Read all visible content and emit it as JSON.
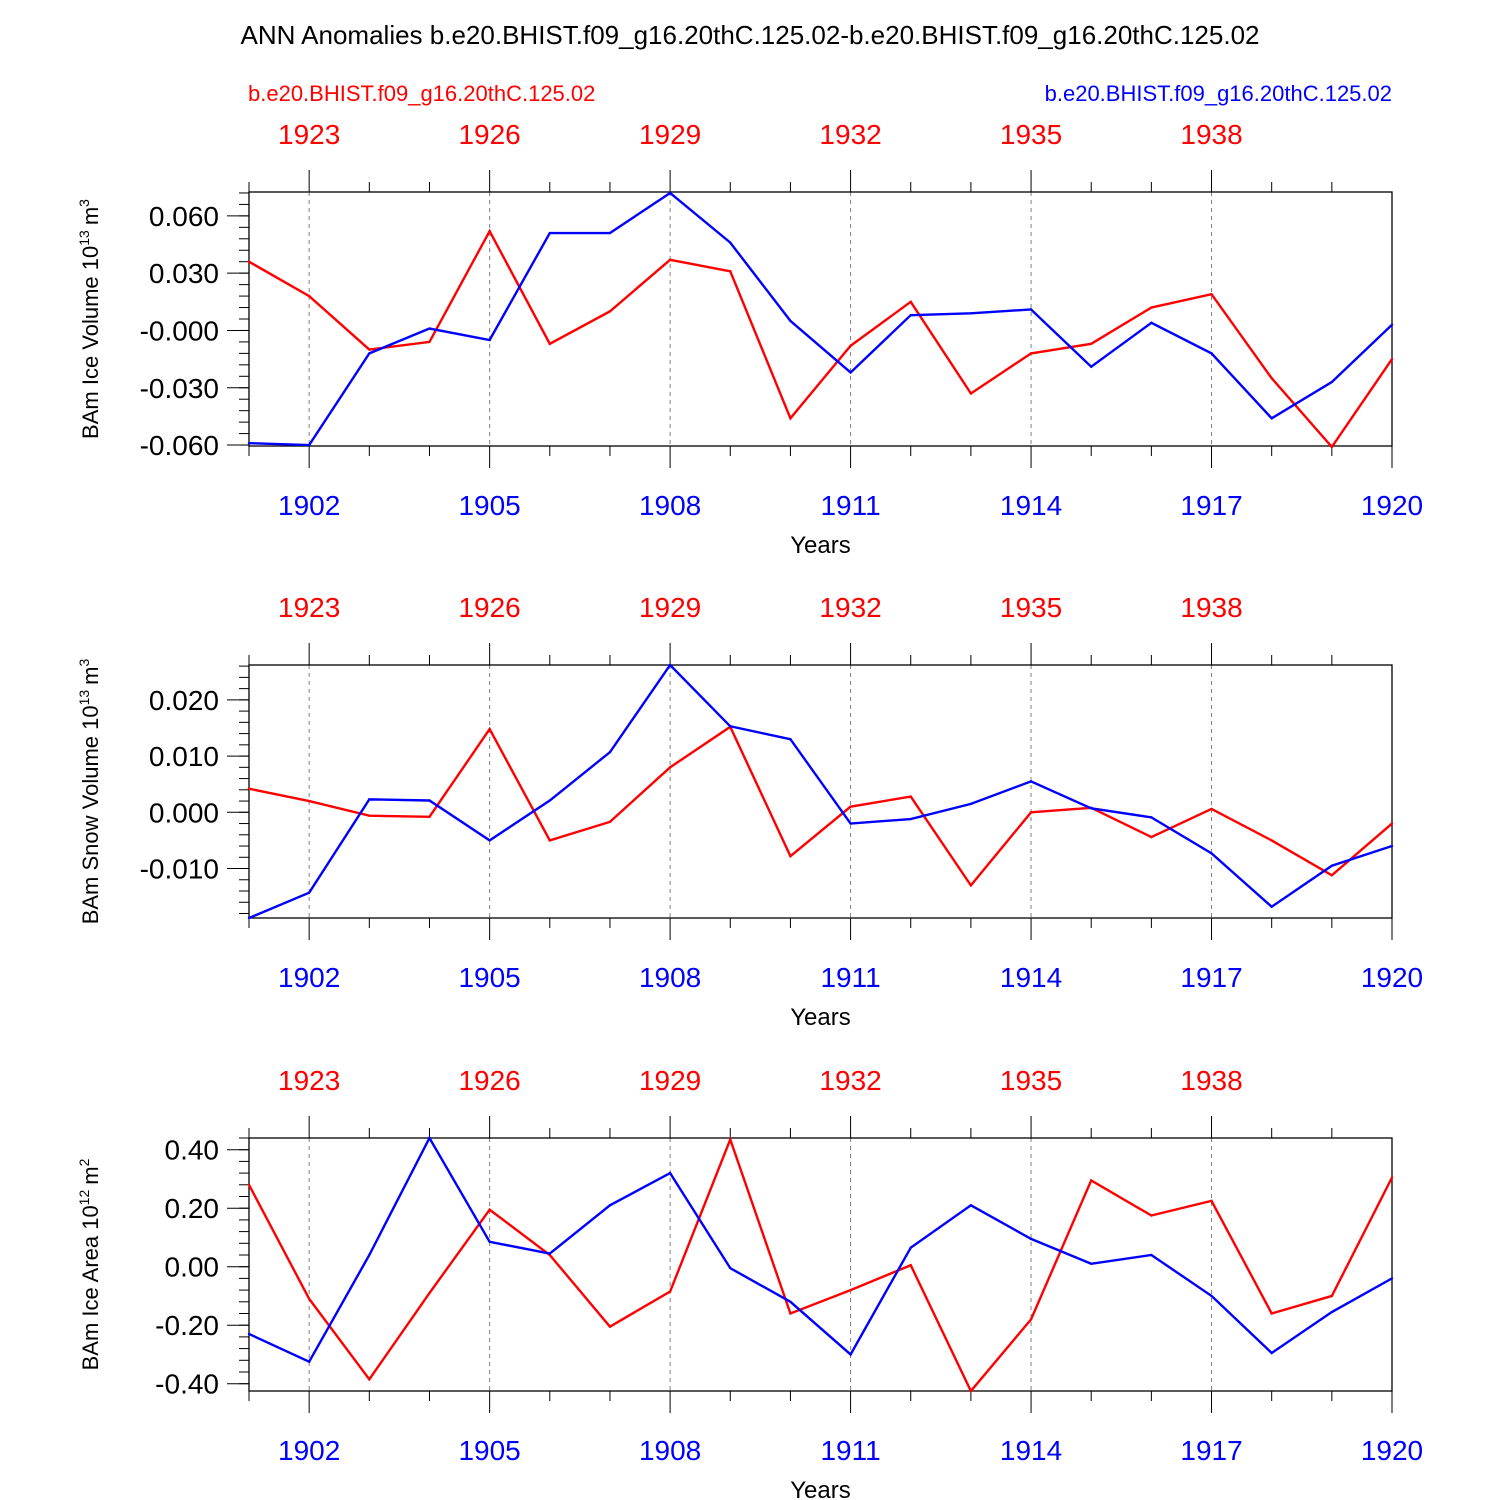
{
  "title": "ANN Anomalies b.e20.BHIST.f09_g16.20thC.125.02-b.e20.BHIST.f09_g16.20thC.125.02",
  "legend": {
    "left_label": "b.e20.BHIST.f09_g16.20thC.125.02",
    "right_label": "b.e20.BHIST.f09_g16.20thC.125.02",
    "left_color": "#ff0000",
    "right_color": "#0000ff"
  },
  "colors": {
    "red": "#ff0000",
    "blue": "#0000ff",
    "axis": "#000000",
    "grid": "#808080"
  },
  "chart_data": [
    {
      "type": "line",
      "ylabel": "BAm Ice Volume 10",
      "ylabel_sup": "13",
      "ylabel_unit": "m",
      "ylabel_unit_sup": "3",
      "xlabel": "Years",
      "ylim": [
        -0.0605,
        0.0725
      ],
      "yticks": [
        -0.06,
        -0.03,
        0.0,
        0.03,
        0.06
      ],
      "yticklabels": [
        "-0.060",
        "-0.030",
        "-0.000",
        "0.030",
        "0.060"
      ],
      "yminor": 0.006,
      "xlim": [
        1901,
        1920
      ],
      "xticks": [
        1902,
        1905,
        1908,
        1911,
        1914,
        1917,
        1920
      ],
      "xticklabels": [
        "1902",
        "1905",
        "1908",
        "1911",
        "1914",
        "1917",
        "1920"
      ],
      "top_ticks": [
        1922,
        1923,
        1924,
        1925,
        1926,
        1927,
        1928,
        1929,
        1930,
        1931,
        1932,
        1933,
        1934,
        1935,
        1936,
        1937,
        1938,
        1939,
        1940
      ],
      "top_major": [
        1923,
        1926,
        1929,
        1932,
        1935,
        1938
      ],
      "top_ticklabels": [
        "1923",
        "1926",
        "1929",
        "1932",
        "1935",
        "1938"
      ],
      "top_offset": 21,
      "series": [
        {
          "name": "b.e20.BHIST.f09_g16.20thC.125.02 (red)",
          "color": "#ff0000",
          "x": [
            1901,
            1902,
            1903,
            1904,
            1905,
            1906,
            1907,
            1908,
            1909,
            1910,
            1911,
            1912,
            1913,
            1914,
            1915,
            1916,
            1917,
            1918,
            1919,
            1920
          ],
          "values": [
            0.036,
            0.018,
            -0.01,
            -0.006,
            0.052,
            -0.007,
            0.01,
            0.037,
            0.031,
            -0.046,
            -0.008,
            0.015,
            -0.033,
            -0.012,
            -0.007,
            0.012,
            0.019,
            -0.025,
            -0.061,
            -0.015
          ]
        },
        {
          "name": "b.e20.BHIST.f09_g16.20thC.125.02 (blue)",
          "color": "#0000ff",
          "x": [
            1901,
            1902,
            1903,
            1904,
            1905,
            1906,
            1907,
            1908,
            1909,
            1910,
            1911,
            1912,
            1913,
            1914,
            1915,
            1916,
            1917,
            1918,
            1919,
            1920
          ],
          "values": [
            -0.059,
            -0.06,
            -0.012,
            0.001,
            -0.005,
            0.051,
            0.051,
            0.072,
            0.046,
            0.005,
            -0.022,
            0.008,
            0.009,
            0.011,
            -0.019,
            0.004,
            -0.012,
            -0.046,
            -0.027,
            0.003
          ]
        }
      ]
    },
    {
      "type": "line",
      "ylabel": "BAm Snow Volume 10",
      "ylabel_sup": "13",
      "ylabel_unit": "m",
      "ylabel_unit_sup": "3",
      "xlabel": "Years",
      "ylim": [
        -0.0188,
        0.0262
      ],
      "yticks": [
        -0.01,
        0.0,
        0.01,
        0.02
      ],
      "yticklabels": [
        "-0.010",
        "0.000",
        "0.010",
        "0.020"
      ],
      "yminor": 0.002,
      "xlim": [
        1901,
        1920
      ],
      "xticks": [
        1902,
        1905,
        1908,
        1911,
        1914,
        1917,
        1920
      ],
      "xticklabels": [
        "1902",
        "1905",
        "1908",
        "1911",
        "1914",
        "1917",
        "1920"
      ],
      "top_ticks": [
        1922,
        1923,
        1924,
        1925,
        1926,
        1927,
        1928,
        1929,
        1930,
        1931,
        1932,
        1933,
        1934,
        1935,
        1936,
        1937,
        1938,
        1939,
        1940
      ],
      "top_major": [
        1923,
        1926,
        1929,
        1932,
        1935,
        1938
      ],
      "top_ticklabels": [
        "1923",
        "1926",
        "1929",
        "1932",
        "1935",
        "1938"
      ],
      "top_offset": 21,
      "series": [
        {
          "name": "b.e20.BHIST.f09_g16.20thC.125.02 (red)",
          "color": "#ff0000",
          "x": [
            1901,
            1902,
            1903,
            1904,
            1905,
            1906,
            1907,
            1908,
            1909,
            1910,
            1911,
            1912,
            1913,
            1914,
            1915,
            1916,
            1917,
            1918,
            1919,
            1920
          ],
          "values": [
            0.0042,
            0.002,
            -0.0006,
            -0.0008,
            0.0148,
            -0.005,
            -0.0017,
            0.008,
            0.0152,
            -0.0078,
            0.001,
            0.0028,
            -0.013,
            0.0,
            0.0008,
            -0.0044,
            0.0006,
            -0.005,
            -0.0112,
            -0.002
          ]
        },
        {
          "name": "b.e20.BHIST.f09_g16.20thC.125.02 (blue)",
          "color": "#0000ff",
          "x": [
            1901,
            1902,
            1903,
            1904,
            1905,
            1906,
            1907,
            1908,
            1909,
            1910,
            1911,
            1912,
            1913,
            1914,
            1915,
            1916,
            1917,
            1918,
            1919,
            1920
          ],
          "values": [
            -0.0188,
            -0.0143,
            0.0023,
            0.0021,
            -0.005,
            0.0021,
            0.0107,
            0.0262,
            0.0153,
            0.013,
            -0.002,
            -0.0012,
            0.0015,
            0.0055,
            0.0007,
            -0.0009,
            -0.0073,
            -0.0168,
            -0.0095,
            -0.006
          ]
        }
      ]
    },
    {
      "type": "line",
      "ylabel": "BAm Ice Area 10",
      "ylabel_sup": "12",
      "ylabel_unit": "m",
      "ylabel_unit_sup": "2",
      "xlabel": "Years",
      "ylim": [
        -0.425,
        0.44
      ],
      "yticks": [
        -0.4,
        -0.2,
        0.0,
        0.2,
        0.4
      ],
      "yticklabels": [
        "-0.40",
        "-0.20",
        "0.00",
        "0.20",
        "0.40"
      ],
      "yminor": 0.04,
      "xlim": [
        1901,
        1920
      ],
      "xticks": [
        1902,
        1905,
        1908,
        1911,
        1914,
        1917,
        1920
      ],
      "xticklabels": [
        "1902",
        "1905",
        "1908",
        "1911",
        "1914",
        "1917",
        "1920"
      ],
      "top_ticks": [
        1922,
        1923,
        1924,
        1925,
        1926,
        1927,
        1928,
        1929,
        1930,
        1931,
        1932,
        1933,
        1934,
        1935,
        1936,
        1937,
        1938,
        1939,
        1940
      ],
      "top_major": [
        1923,
        1926,
        1929,
        1932,
        1935,
        1938
      ],
      "top_ticklabels": [
        "1923",
        "1926",
        "1929",
        "1932",
        "1935",
        "1938"
      ],
      "top_offset": 21,
      "series": [
        {
          "name": "b.e20.BHIST.f09_g16.20thC.125.02 (red)",
          "color": "#ff0000",
          "x": [
            1901,
            1902,
            1903,
            1904,
            1905,
            1906,
            1907,
            1908,
            1909,
            1910,
            1911,
            1912,
            1913,
            1914,
            1915,
            1916,
            1917,
            1918,
            1919,
            1920
          ],
          "values": [
            0.28,
            -0.11,
            -0.385,
            -0.09,
            0.195,
            0.04,
            -0.205,
            -0.085,
            0.435,
            -0.16,
            -0.08,
            0.005,
            -0.425,
            -0.18,
            0.295,
            0.175,
            0.225,
            -0.16,
            -0.1,
            0.305
          ]
        },
        {
          "name": "b.e20.BHIST.f09_g16.20thC.125.02 (blue)",
          "color": "#0000ff",
          "x": [
            1901,
            1902,
            1903,
            1904,
            1905,
            1906,
            1907,
            1908,
            1909,
            1910,
            1911,
            1912,
            1913,
            1914,
            1915,
            1916,
            1917,
            1918,
            1919,
            1920
          ],
          "values": [
            -0.23,
            -0.325,
            0.04,
            0.44,
            0.085,
            0.045,
            0.21,
            0.32,
            -0.005,
            -0.12,
            -0.3,
            0.065,
            0.21,
            0.095,
            0.01,
            0.04,
            -0.1,
            -0.295,
            -0.155,
            -0.04
          ]
        }
      ]
    }
  ]
}
